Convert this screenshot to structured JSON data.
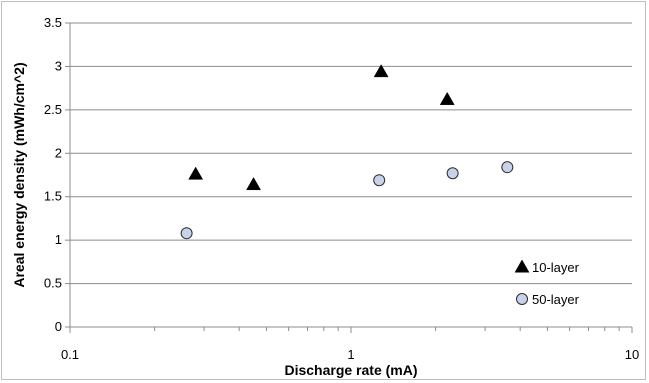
{
  "chart_data": {
    "type": "scatter",
    "xlabel": "Discharge rate (mA)",
    "ylabel": "Areal energy density (mWh/cm^2)",
    "x_scale": "log",
    "xlim": [
      0.1,
      10
    ],
    "ylim": [
      0,
      3.5
    ],
    "x_ticks": [
      "0.1",
      "1",
      "10"
    ],
    "y_ticks": [
      "0",
      "0.5",
      "1",
      "1.5",
      "2",
      "2.5",
      "3",
      "3.5"
    ],
    "grid": "horizontal",
    "legend_position": "bottom-right",
    "series": [
      {
        "name": "10-layer",
        "marker": "triangle",
        "color": "#000000",
        "x": [
          0.28,
          0.45,
          1.28,
          2.2
        ],
        "y": [
          1.76,
          1.64,
          2.94,
          2.62
        ]
      },
      {
        "name": "50-layer",
        "marker": "circle",
        "color": "#c6d3ea",
        "x": [
          0.26,
          1.26,
          2.3,
          3.6
        ],
        "y": [
          1.08,
          1.69,
          1.77,
          1.84
        ]
      }
    ]
  }
}
